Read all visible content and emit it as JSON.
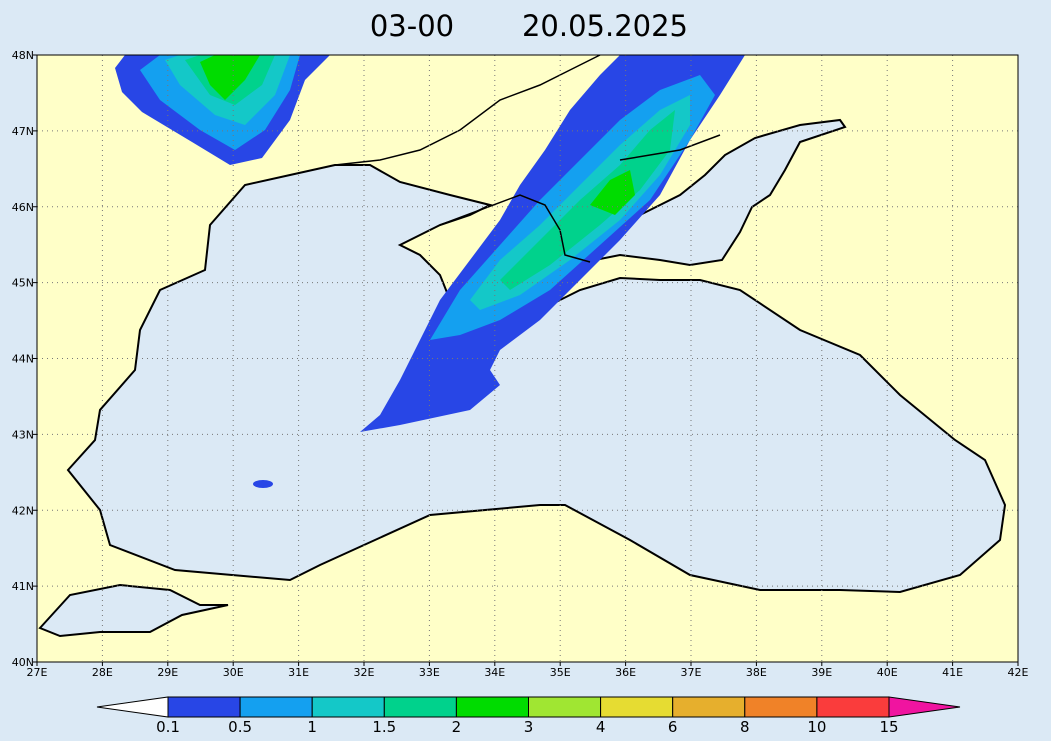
{
  "title": {
    "time": "03-00",
    "date": "20.05.2025"
  },
  "axes": {
    "lat_labels": [
      "48N",
      "47N",
      "46N",
      "45N",
      "44N",
      "43N",
      "42N",
      "41N",
      "40N"
    ],
    "lon_labels": [
      "27E",
      "28E",
      "29E",
      "30E",
      "31E",
      "32E",
      "33E",
      "34E",
      "35E",
      "36E",
      "37E",
      "38E",
      "39E",
      "40E",
      "41E",
      "42E"
    ]
  },
  "colorbar": {
    "labels": [
      "0.1",
      "0.5",
      "1",
      "1.5",
      "2",
      "3",
      "4",
      "6",
      "8",
      "10",
      "15"
    ],
    "colors": [
      "#ffffff",
      "#2846e6",
      "#14a0f0",
      "#14c8c8",
      "#00d28c",
      "#00dc00",
      "#a0e632",
      "#e6dc32",
      "#e6af2d",
      "#f08228",
      "#fa3c3c",
      "#f014a0"
    ]
  }
}
